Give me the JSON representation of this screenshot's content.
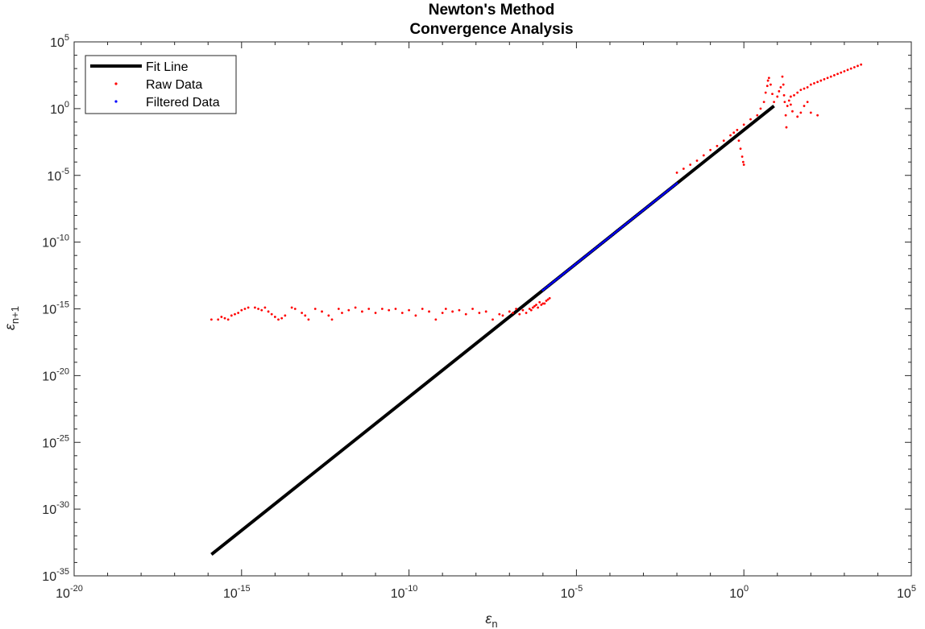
{
  "chart_data": {
    "type": "scatter",
    "title": [
      "Newton's Method",
      "Convergence Analysis"
    ],
    "xlabel": "ε",
    "xlabel_sub": "n",
    "ylabel": "ε",
    "ylabel_sub": "n+1",
    "x_scale": "log",
    "y_scale": "log",
    "xlim_exp": [
      -20,
      5
    ],
    "ylim_exp": [
      -35,
      5
    ],
    "x_tick_exps": [
      -20,
      -15,
      -10,
      -5,
      0,
      5
    ],
    "y_tick_exps": [
      -35,
      -30,
      -25,
      -20,
      -15,
      -10,
      -5,
      0,
      5
    ],
    "x_tick_labels": [
      "10",
      "10",
      "10",
      "10",
      "10",
      "10"
    ],
    "x_tick_label_exps": [
      "-20",
      "-15",
      "-10",
      "-5",
      "0",
      "5"
    ],
    "y_tick_labels": [
      "10",
      "10",
      "10",
      "10",
      "10",
      "10",
      "10",
      "10",
      "10"
    ],
    "y_tick_label_exps": [
      "-35",
      "-30",
      "-25",
      "-20",
      "-15",
      "-10",
      "-5",
      "0",
      "5"
    ],
    "grid": false,
    "legend_position": "top-left",
    "series": [
      {
        "name": "Fit Line",
        "kind": "line",
        "color": "#000000",
        "log10_points": [
          [
            -15.9,
            -33.4
          ],
          [
            0.9,
            0.2
          ]
        ]
      },
      {
        "name": "Raw Data",
        "kind": "scatter",
        "color": "#ff0000",
        "log10_points": [
          [
            -15.9,
            -15.8
          ],
          [
            -15.7,
            -15.8
          ],
          [
            -15.6,
            -15.6
          ],
          [
            -15.5,
            -15.7
          ],
          [
            -15.4,
            -15.8
          ],
          [
            -15.3,
            -15.5
          ],
          [
            -15.2,
            -15.4
          ],
          [
            -15.1,
            -15.3
          ],
          [
            -15.0,
            -15.1
          ],
          [
            -14.9,
            -15.0
          ],
          [
            -14.8,
            -14.9
          ],
          [
            -14.6,
            -14.9
          ],
          [
            -14.5,
            -15.0
          ],
          [
            -14.4,
            -15.1
          ],
          [
            -14.3,
            -14.9
          ],
          [
            -14.2,
            -15.2
          ],
          [
            -14.1,
            -15.4
          ],
          [
            -14.0,
            -15.6
          ],
          [
            -13.9,
            -15.8
          ],
          [
            -13.8,
            -15.7
          ],
          [
            -13.7,
            -15.5
          ],
          [
            -13.5,
            -14.9
          ],
          [
            -13.4,
            -15.0
          ],
          [
            -13.2,
            -15.3
          ],
          [
            -13.1,
            -15.5
          ],
          [
            -13.0,
            -15.8
          ],
          [
            -12.8,
            -15.0
          ],
          [
            -12.6,
            -15.2
          ],
          [
            -12.4,
            -15.5
          ],
          [
            -12.3,
            -15.8
          ],
          [
            -12.1,
            -15.0
          ],
          [
            -12.0,
            -15.3
          ],
          [
            -11.8,
            -15.1
          ],
          [
            -11.6,
            -14.9
          ],
          [
            -11.4,
            -15.2
          ],
          [
            -11.2,
            -15.0
          ],
          [
            -11.0,
            -15.3
          ],
          [
            -10.8,
            -15.0
          ],
          [
            -10.6,
            -15.1
          ],
          [
            -10.4,
            -15.0
          ],
          [
            -10.2,
            -15.3
          ],
          [
            -10.0,
            -15.1
          ],
          [
            -9.8,
            -15.5
          ],
          [
            -9.6,
            -15.0
          ],
          [
            -9.4,
            -15.2
          ],
          [
            -9.2,
            -15.8
          ],
          [
            -9.0,
            -15.3
          ],
          [
            -8.9,
            -15.0
          ],
          [
            -8.7,
            -15.2
          ],
          [
            -8.5,
            -15.1
          ],
          [
            -8.3,
            -15.4
          ],
          [
            -8.1,
            -15.0
          ],
          [
            -7.9,
            -15.3
          ],
          [
            -7.7,
            -15.2
          ],
          [
            -7.5,
            -15.8
          ],
          [
            -7.3,
            -15.4
          ],
          [
            -7.2,
            -15.5
          ],
          [
            -7.0,
            -15.2
          ],
          [
            -6.9,
            -15.3
          ],
          [
            -6.8,
            -15.0
          ],
          [
            -6.7,
            -15.4
          ],
          [
            -6.6,
            -15.1
          ],
          [
            -6.5,
            -15.3
          ],
          [
            -6.4,
            -15.0
          ],
          [
            -6.3,
            -14.9
          ],
          [
            -6.2,
            -14.7
          ],
          [
            -6.1,
            -14.5
          ],
          [
            -6.0,
            -14.6
          ],
          [
            -5.9,
            -14.4
          ],
          [
            -5.8,
            -14.2
          ],
          [
            -6.35,
            -15.1
          ],
          [
            -6.25,
            -14.8
          ],
          [
            -6.15,
            -14.9
          ],
          [
            -6.05,
            -14.7
          ],
          [
            -5.95,
            -14.6
          ],
          [
            -5.85,
            -14.3
          ],
          [
            -2.0,
            -4.8
          ],
          [
            -1.8,
            -4.5
          ],
          [
            -1.6,
            -4.2
          ],
          [
            -1.4,
            -3.9
          ],
          [
            -1.2,
            -3.5
          ],
          [
            -1.0,
            -3.1
          ],
          [
            -0.8,
            -2.8
          ],
          [
            -0.6,
            -2.4
          ],
          [
            -0.4,
            -2.0
          ],
          [
            -0.2,
            -1.6
          ],
          [
            0.0,
            -1.2
          ],
          [
            0.2,
            -0.8
          ],
          [
            0.4,
            -0.5
          ],
          [
            0.5,
            0.0
          ],
          [
            0.6,
            0.5
          ],
          [
            0.65,
            1.2
          ],
          [
            0.7,
            1.7
          ],
          [
            0.72,
            2.1
          ],
          [
            0.75,
            2.3
          ],
          [
            0.8,
            1.8
          ],
          [
            0.85,
            1.1
          ],
          [
            -0.1,
            -3.0
          ],
          [
            -0.05,
            -3.6
          ],
          [
            -0.02,
            -4.0
          ],
          [
            0.0,
            -4.2
          ],
          [
            -0.15,
            -2.4
          ],
          [
            -0.3,
            -1.8
          ],
          [
            0.9,
            0.5
          ],
          [
            1.0,
            0.9
          ],
          [
            1.05,
            1.3
          ],
          [
            1.1,
            1.6
          ],
          [
            1.15,
            2.4
          ],
          [
            1.18,
            1.8
          ],
          [
            1.2,
            1.0
          ],
          [
            1.22,
            0.5
          ],
          [
            1.25,
            -0.5
          ],
          [
            1.27,
            -1.4
          ],
          [
            1.3,
            0.2
          ],
          [
            1.35,
            0.6
          ],
          [
            1.4,
            0.9
          ],
          [
            1.5,
            1.0
          ],
          [
            1.6,
            1.2
          ],
          [
            1.7,
            1.4
          ],
          [
            1.8,
            1.5
          ],
          [
            1.9,
            1.6
          ],
          [
            2.0,
            1.8
          ],
          [
            2.1,
            1.9
          ],
          [
            2.2,
            2.0
          ],
          [
            2.3,
            2.1
          ],
          [
            2.4,
            2.2
          ],
          [
            2.5,
            2.3
          ],
          [
            2.6,
            2.4
          ],
          [
            2.7,
            2.5
          ],
          [
            2.8,
            2.6
          ],
          [
            2.9,
            2.7
          ],
          [
            3.0,
            2.8
          ],
          [
            3.1,
            2.9
          ],
          [
            3.2,
            3.0
          ],
          [
            3.3,
            3.1
          ],
          [
            3.4,
            3.2
          ],
          [
            3.5,
            3.3
          ],
          [
            1.6,
            -0.6
          ],
          [
            1.7,
            -0.3
          ],
          [
            1.8,
            0.2
          ],
          [
            1.9,
            0.5
          ],
          [
            2.0,
            -0.3
          ],
          [
            2.2,
            -0.5
          ],
          [
            1.4,
            0.3
          ],
          [
            1.45,
            -0.2
          ]
        ]
      },
      {
        "name": "Filtered Data",
        "kind": "scatter",
        "color": "#0000ff",
        "log10_x_range": [
          -6.0,
          -2.0
        ],
        "log10_slope": 2,
        "log10_intercept": -1.6,
        "log10_x_step": 0.05
      }
    ]
  }
}
